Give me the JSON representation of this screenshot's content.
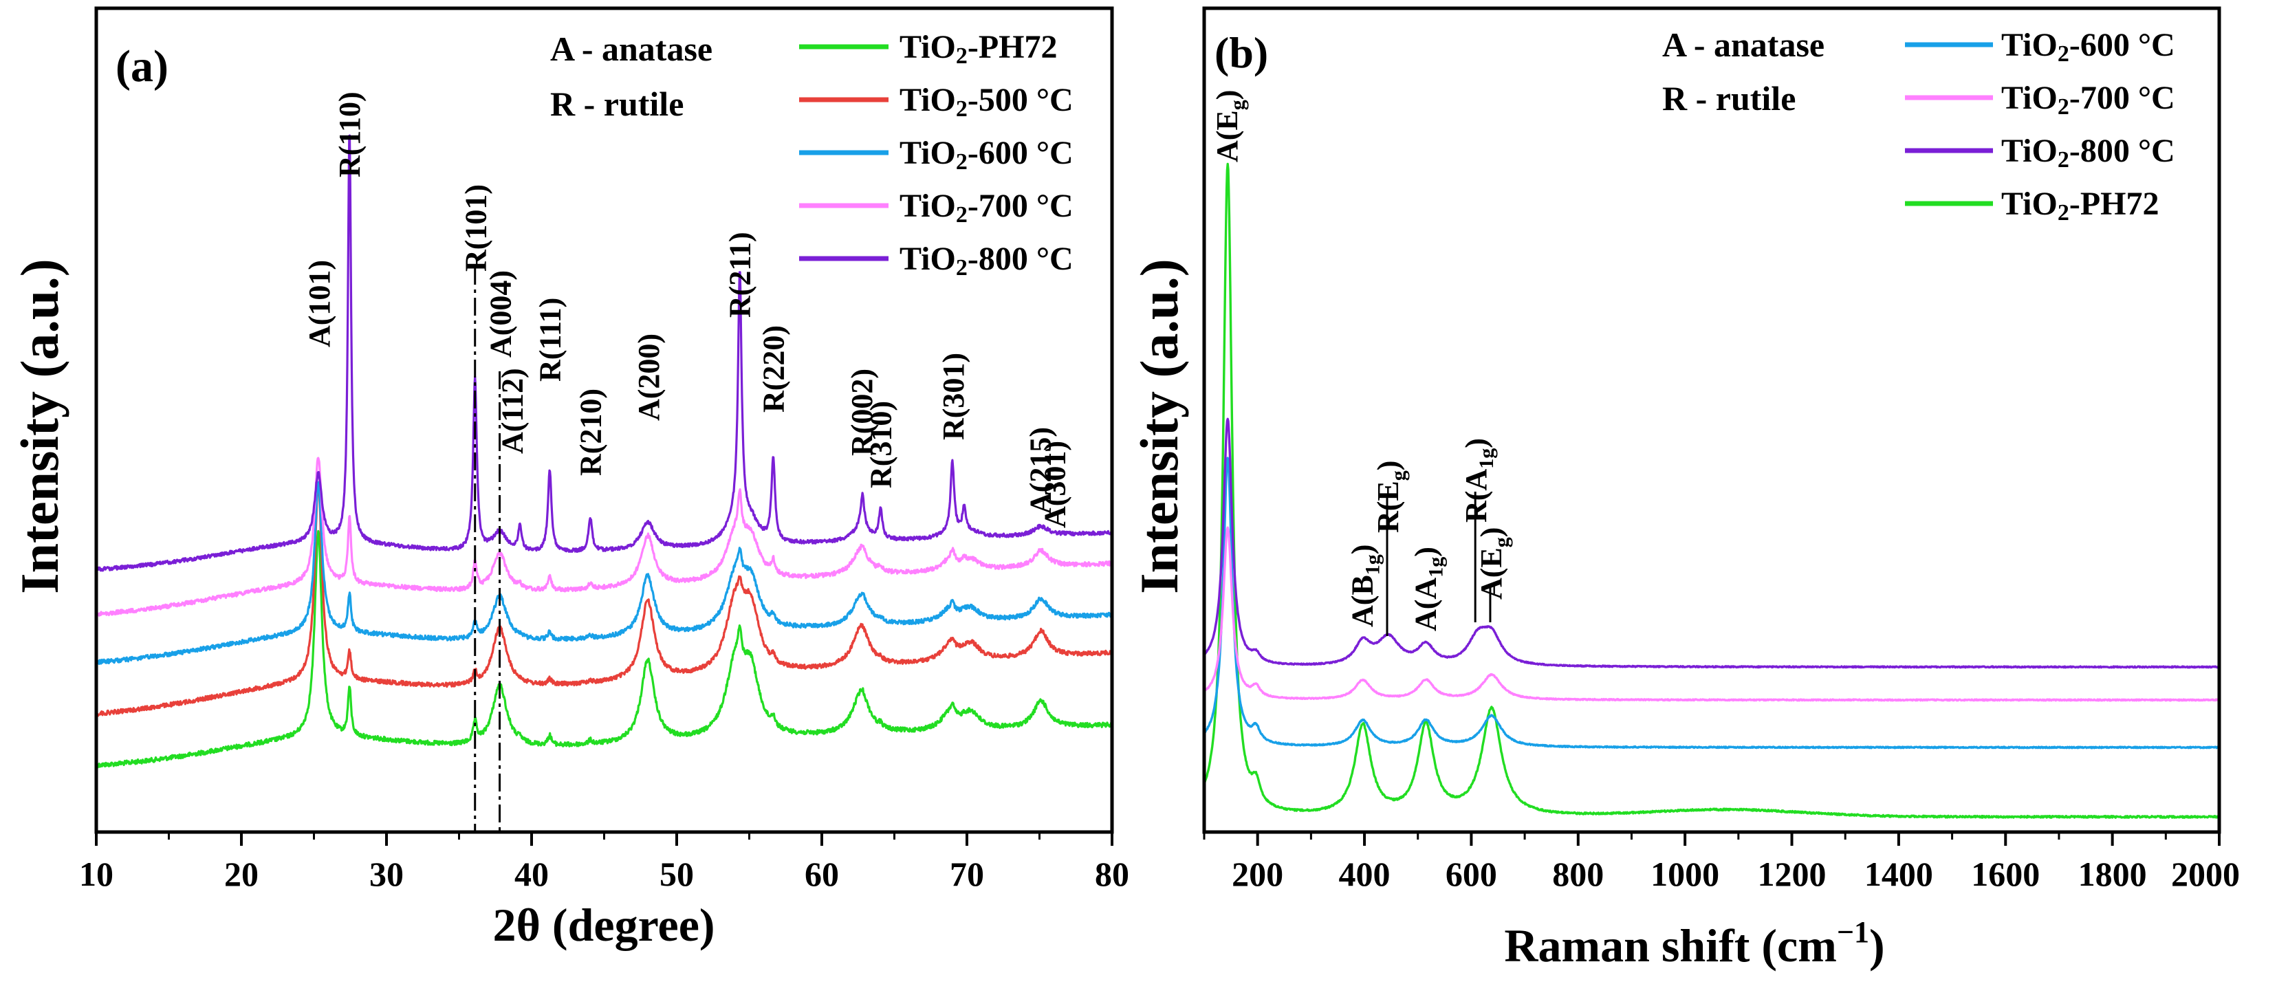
{
  "chart_data": [
    {
      "type": "line",
      "panel_label": "(a)",
      "xlabel": "2θ (degree)",
      "ylabel": "Intensity (a.u.)",
      "xlim": [
        10,
        80
      ],
      "xticks": [
        10,
        20,
        30,
        40,
        50,
        60,
        70,
        80
      ],
      "legend_placement": "top-right",
      "phase_key": [
        "A - anatase",
        "R - rutile"
      ],
      "series": [
        {
          "name": "TiO2-PH72",
          "color": "#22dd22"
        },
        {
          "name": "TiO2-500 °C",
          "color": "#e8403a"
        },
        {
          "name": "TiO2-600 °C",
          "color": "#18a0e8"
        },
        {
          "name": "TiO2-700 °C",
          "color": "#ff80ff"
        },
        {
          "name": "TiO2-800 °C",
          "color": "#7a1fd6"
        }
      ],
      "peak_labels": [
        {
          "text": "A(101)",
          "x": 25.3
        },
        {
          "text": "R(110)",
          "x": 27.4
        },
        {
          "text": "R(101)",
          "x": 36.1
        },
        {
          "text": "A(004)",
          "x": 37.8
        },
        {
          "text": "A(112)",
          "x": 38.6
        },
        {
          "text": "R(111)",
          "x": 41.2
        },
        {
          "text": "R(210)",
          "x": 44.0
        },
        {
          "text": "A(200)",
          "x": 48.0
        },
        {
          "text": "R(211)",
          "x": 54.3
        },
        {
          "text": "R(220)",
          "x": 56.6
        },
        {
          "text": "R(002)",
          "x": 62.7
        },
        {
          "text": "R(310)",
          "x": 64.0
        },
        {
          "text": "R(301)",
          "x": 69.0
        },
        {
          "text": "A(215)",
          "x": 75.0
        },
        {
          "text": "A(301)",
          "x": 76.0
        }
      ],
      "reference_lines_x": [
        36.1,
        37.8
      ]
    },
    {
      "type": "line",
      "panel_label": "(b)",
      "xlabel": "Raman shift (cm",
      "xlabel_sup": "−1",
      "xlabel_end": ")",
      "ylabel": "Intensity (a.u.)",
      "xlim": [
        100,
        2000
      ],
      "xticks": [
        200,
        400,
        600,
        800,
        1000,
        1200,
        1400,
        1600,
        1800,
        2000
      ],
      "legend_placement": "top-right",
      "phase_key": [
        "A - anatase",
        "R - rutile"
      ],
      "series": [
        {
          "name": "TiO2-600 °C",
          "color": "#18a0e8"
        },
        {
          "name": "TiO2-700 °C",
          "color": "#ff80ff"
        },
        {
          "name": "TiO2-800 °C",
          "color": "#7a1fd6"
        },
        {
          "name": "TiO2-PH72",
          "color": "#22dd22"
        }
      ],
      "peak_labels": [
        {
          "main": "A(E",
          "sub": "g",
          "end": ")",
          "x": 144
        },
        {
          "main": "A(B",
          "sub": "1g",
          "end": ")",
          "x": 397
        },
        {
          "main": "R(E",
          "sub": "g",
          "end": ")",
          "x": 445
        },
        {
          "main": "A(A",
          "sub": "1g",
          "end": ")",
          "x": 515
        },
        {
          "main": "R(A",
          "sub": "1g",
          "end": ")",
          "x": 610
        },
        {
          "main": "A(E",
          "sub": "g",
          "end": ")",
          "x": 638
        }
      ]
    }
  ]
}
